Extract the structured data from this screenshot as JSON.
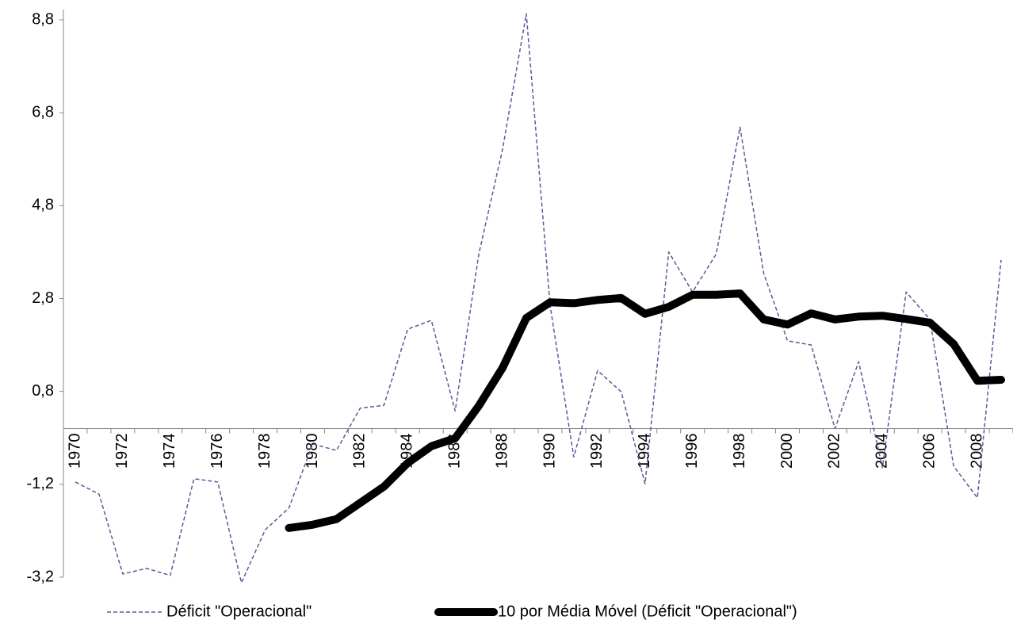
{
  "chart_data": {
    "type": "line",
    "categories": [
      "1970",
      null,
      "1972",
      null,
      "1974",
      null,
      "1976",
      null,
      "1978",
      null,
      "1980",
      null,
      "1982",
      null,
      "1984",
      null,
      "1986",
      null,
      "1988",
      null,
      "1990",
      null,
      "1992",
      null,
      "1994",
      null,
      "1996",
      null,
      "1998",
      null,
      "2000",
      null,
      "2002",
      null,
      "2004",
      null,
      "2006",
      null,
      "2008",
      null
    ],
    "series": [
      {
        "name": "Déficit \"Operacional\"",
        "color": "#5a5a9a",
        "dashed": true,
        "values": [
          -1.15,
          -1.41,
          -3.13,
          -3.01,
          -3.16,
          -1.08,
          -1.15,
          -3.32,
          -2.18,
          -1.71,
          -0.33,
          -0.47,
          0.44,
          0.5,
          2.14,
          2.33,
          0.38,
          3.76,
          6.02,
          8.93,
          2.65,
          -0.61,
          1.25,
          0.79,
          -1.19,
          3.8,
          2.94,
          3.76,
          6.49,
          3.34,
          1.89,
          1.8,
          0.0,
          1.44,
          -0.84,
          2.94,
          2.35,
          -0.81,
          -1.49,
          3.63
        ]
      },
      {
        "name": "10 por Média Móvel (Déficit \"Operacional\")",
        "color": "#000000",
        "dashed": false,
        "values": [
          null,
          null,
          null,
          null,
          null,
          null,
          null,
          null,
          null,
          -2.14,
          -2.07,
          -1.95,
          -1.6,
          -1.25,
          -0.74,
          -0.38,
          -0.21,
          0.49,
          1.31,
          2.38,
          2.72,
          2.7,
          2.77,
          2.81,
          2.47,
          2.62,
          2.88,
          2.88,
          2.91,
          2.35,
          2.24,
          2.48,
          2.35,
          2.41,
          2.43,
          2.36,
          2.28,
          1.82,
          1.03,
          1.05
        ]
      }
    ],
    "ylim": [
      -3.2,
      8.8
    ],
    "yticks": [
      {
        "value": -3.2,
        "label": "-3,2"
      },
      {
        "value": -1.2,
        "label": "-1,2"
      },
      {
        "value": 0.8,
        "label": "0,8"
      },
      {
        "value": 2.8,
        "label": "2,8"
      },
      {
        "value": 4.8,
        "label": "4,8"
      },
      {
        "value": 6.8,
        "label": "6,8"
      },
      {
        "value": 8.8,
        "label": "8,8"
      }
    ],
    "grid": false,
    "legend": "bottom"
  }
}
